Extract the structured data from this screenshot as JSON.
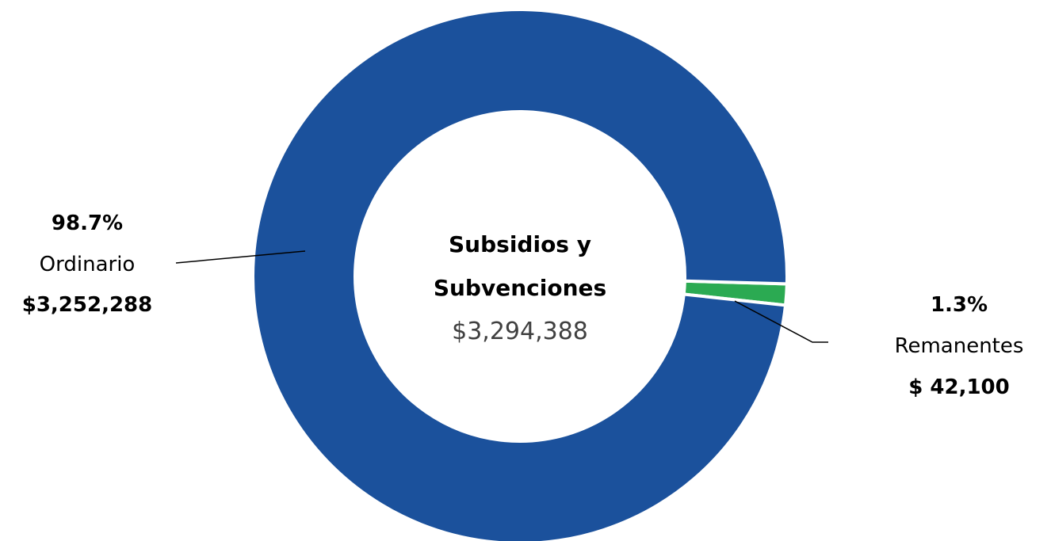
{
  "chart_data": {
    "type": "donut",
    "center": {
      "title_lines": [
        "Subsidios y",
        "Subvenciones"
      ],
      "total": "$3,294,388"
    },
    "slices": [
      {
        "name": "Ordinario",
        "value": 3252288,
        "percent_label": "98.7%",
        "amount_label": "$3,252,288",
        "color": "#1B519C"
      },
      {
        "name": "Remanentes",
        "value": 42100,
        "percent_label": "1.3%",
        "amount_label": "$ 42,100",
        "color": "#2BAA52"
      }
    ],
    "slice_separator_color": "#ffffff"
  }
}
